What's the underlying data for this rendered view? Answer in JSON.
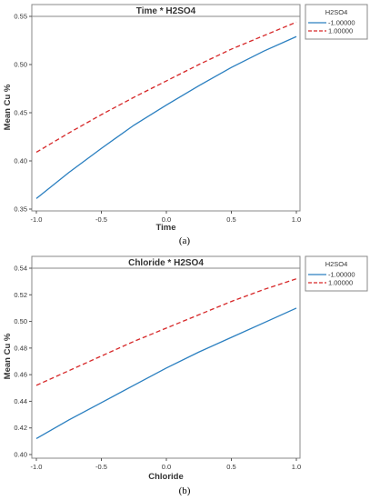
{
  "chart_data": [
    {
      "type": "line",
      "title": "Time * H2SO4",
      "xlabel": "Time",
      "ylabel": "Mean Cu %",
      "xlim": [
        -1.0,
        1.0
      ],
      "ylim": [
        0.35,
        0.55
      ],
      "x_ticks": [
        -1.0,
        -0.5,
        0.0,
        0.5,
        1.0
      ],
      "x_tick_labels": [
        "-1.0",
        "-0.5",
        "0.0",
        "0.5",
        "1.0"
      ],
      "y_ticks": [
        0.35,
        0.4,
        0.45,
        0.5,
        0.55
      ],
      "y_tick_labels": [
        "0.35",
        "0.40",
        "0.45",
        "0.50",
        "0.55"
      ],
      "caption": "(a)",
      "legend": {
        "title": "H2SO4",
        "position": "right-top"
      },
      "series": [
        {
          "name": "-1.00000",
          "color": "#2a7fc0",
          "style": "solid",
          "x": [
            -1.0,
            -0.75,
            -0.5,
            -0.25,
            0.0,
            0.25,
            0.5,
            0.75,
            1.0
          ],
          "y": [
            0.361,
            0.388,
            0.413,
            0.437,
            0.458,
            0.478,
            0.497,
            0.514,
            0.529
          ]
        },
        {
          "name": "1.00000",
          "color": "#d62728",
          "style": "dashed",
          "x": [
            -1.0,
            -0.75,
            -0.5,
            -0.25,
            0.0,
            0.25,
            0.5,
            0.75,
            1.0
          ],
          "y": [
            0.409,
            0.429,
            0.448,
            0.466,
            0.483,
            0.5,
            0.516,
            0.53,
            0.544
          ]
        }
      ]
    },
    {
      "type": "line",
      "title": "Chloride * H2SO4",
      "xlabel": "Chloride",
      "ylabel": "Mean Cu %",
      "xlim": [
        -1.0,
        1.0
      ],
      "ylim": [
        0.4,
        0.54
      ],
      "x_ticks": [
        -1.0,
        -0.5,
        0.0,
        0.5,
        1.0
      ],
      "x_tick_labels": [
        "-1.0",
        "-0.5",
        "0.0",
        "0.5",
        "1.0"
      ],
      "y_ticks": [
        0.4,
        0.42,
        0.44,
        0.46,
        0.48,
        0.5,
        0.52,
        0.54
      ],
      "y_tick_labels": [
        "0.40",
        "0.42",
        "0.44",
        "0.46",
        "0.48",
        "0.50",
        "0.52",
        "0.54"
      ],
      "caption": "(b)",
      "legend": {
        "title": "H2SO4",
        "position": "right-top"
      },
      "series": [
        {
          "name": "-1.00000",
          "color": "#2a7fc0",
          "style": "solid",
          "x": [
            -1.0,
            -0.75,
            -0.5,
            -0.25,
            0.0,
            0.25,
            0.5,
            0.75,
            1.0
          ],
          "y": [
            0.412,
            0.426,
            0.439,
            0.452,
            0.465,
            0.477,
            0.488,
            0.499,
            0.51
          ]
        },
        {
          "name": "1.00000",
          "color": "#d62728",
          "style": "dashed",
          "x": [
            -1.0,
            -0.75,
            -0.5,
            -0.25,
            0.0,
            0.25,
            0.5,
            0.75,
            1.0
          ],
          "y": [
            0.452,
            0.463,
            0.474,
            0.485,
            0.495,
            0.505,
            0.515,
            0.524,
            0.532
          ]
        }
      ]
    }
  ]
}
